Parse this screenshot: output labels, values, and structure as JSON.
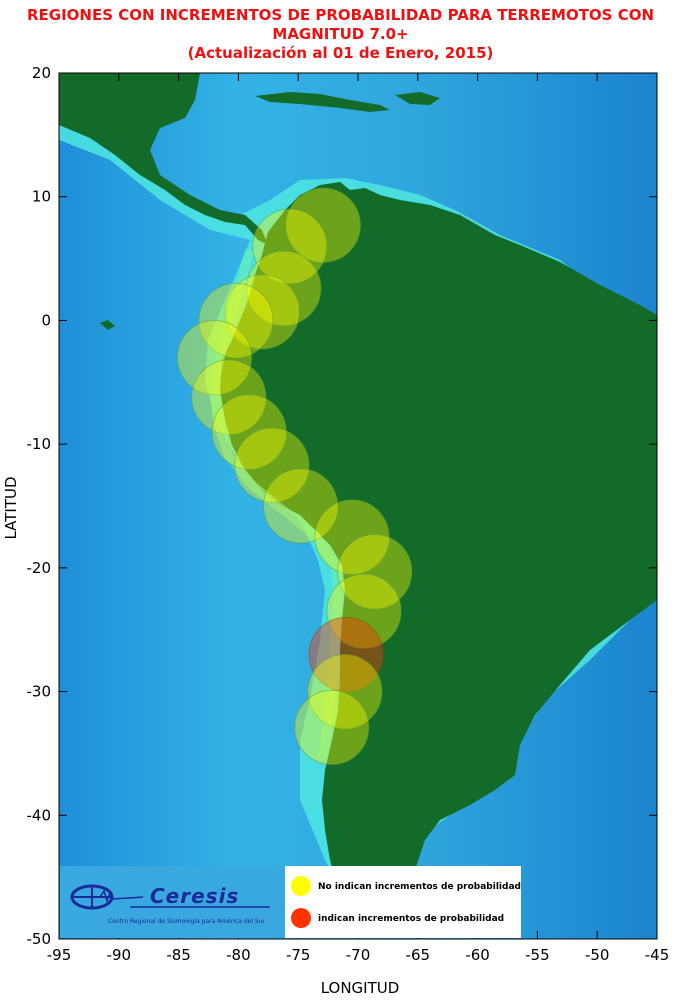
{
  "title": {
    "line1": "REGIONES CON INCREMENTOS DE PROBABILIDAD PARA TERREMOTOS CON",
    "line2": "MAGNITUD 7.0+",
    "line3": "(Actualización al 01 de Enero, 2015)"
  },
  "axes": {
    "xlabel": "LONGITUD",
    "ylabel": "LATITUD",
    "xlim": [
      -95,
      -45
    ],
    "ylim": [
      -50,
      20
    ],
    "xticks": [
      -95,
      -90,
      -85,
      -80,
      -75,
      -70,
      -65,
      -60,
      -55,
      -50,
      -45
    ],
    "yticks": [
      20,
      10,
      0,
      -10,
      -20,
      -30,
      -40,
      -50
    ]
  },
  "legend": {
    "entries": [
      {
        "label": "No indican incrementos de probabilidad",
        "color": "#ffff00"
      },
      {
        "label": "indican incrementos de probabilidad",
        "color": "#ff3300"
      }
    ]
  },
  "logo": {
    "name": "Ceresis",
    "subtitle": "Centro Regional de Sismología para América del Sur"
  },
  "regions": [
    {
      "lon": -72.9,
      "lat": 7.7,
      "type": "no"
    },
    {
      "lon": -75.7,
      "lat": 6.0,
      "type": "no"
    },
    {
      "lon": -76.2,
      "lat": 2.6,
      "type": "no"
    },
    {
      "lon": -78.0,
      "lat": 0.7,
      "type": "no"
    },
    {
      "lon": -80.2,
      "lat": 0.0,
      "type": "no"
    },
    {
      "lon": -82.0,
      "lat": -3.0,
      "type": "no"
    },
    {
      "lon": -80.8,
      "lat": -6.2,
      "type": "no"
    },
    {
      "lon": -79.1,
      "lat": -9.0,
      "type": "no"
    },
    {
      "lon": -77.2,
      "lat": -11.7,
      "type": "no"
    },
    {
      "lon": -74.8,
      "lat": -15.0,
      "type": "no"
    },
    {
      "lon": -70.5,
      "lat": -17.5,
      "type": "no"
    },
    {
      "lon": -68.6,
      "lat": -20.3,
      "type": "no"
    },
    {
      "lon": -69.5,
      "lat": -23.5,
      "type": "no"
    },
    {
      "lon": -71.0,
      "lat": -27.0,
      "type": "si"
    },
    {
      "lon": -71.1,
      "lat": -30.0,
      "type": "no"
    },
    {
      "lon": -72.2,
      "lat": -32.9,
      "type": "no"
    }
  ]
}
